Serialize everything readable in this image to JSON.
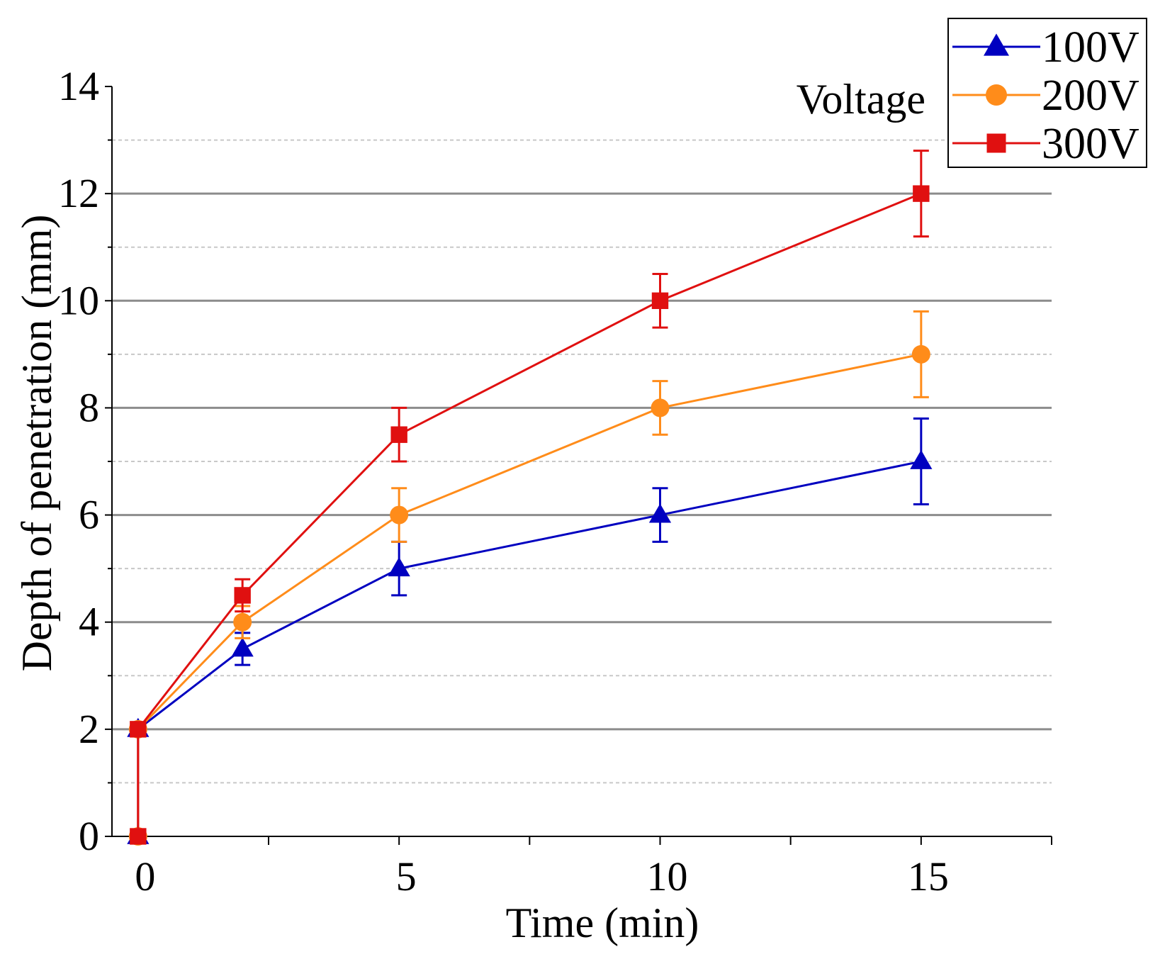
{
  "chart_data": {
    "type": "line",
    "title": "",
    "xlabel": "Time (min)",
    "ylabel": "Depth of penetration (mm)",
    "xlim": [
      -0.5,
      17.5
    ],
    "ylim": [
      0,
      14
    ],
    "x_ticks": [
      0,
      5,
      10,
      15
    ],
    "x_tick_labels": [
      "0",
      "5",
      "10",
      "15"
    ],
    "x_minor_ticks": [
      2.5,
      7.5,
      12.5,
      17.5
    ],
    "y_ticks": [
      0,
      2,
      4,
      6,
      8,
      10,
      12,
      14
    ],
    "y_tick_labels": [
      "0",
      "2",
      "4",
      "6",
      "8",
      "10",
      "12",
      "14"
    ],
    "y_minor_ticks": [
      1,
      3,
      5,
      7,
      9,
      11,
      13
    ],
    "grid": true,
    "legend_title": "Voltage",
    "legend_position": "top-right",
    "series": [
      {
        "name": "100V",
        "color": "#0000c0",
        "marker": "triangle",
        "x": [
          0,
          2,
          5,
          10,
          15
        ],
        "values": [
          2,
          3.5,
          5,
          6,
          7
        ],
        "errors": [
          0.1,
          0.3,
          0.5,
          0.5,
          0.8
        ],
        "origin_point": [
          0,
          0
        ]
      },
      {
        "name": "200V",
        "color": "#ff8c1a",
        "marker": "circle",
        "x": [
          0,
          2,
          5,
          10,
          15
        ],
        "values": [
          2,
          4,
          6,
          8,
          9
        ],
        "errors": [
          0.1,
          0.3,
          0.5,
          0.5,
          0.8
        ],
        "origin_point": [
          0,
          0
        ]
      },
      {
        "name": "300V",
        "color": "#e01010",
        "marker": "square",
        "x": [
          0,
          2,
          5,
          10,
          15
        ],
        "values": [
          2,
          4.5,
          7.5,
          10,
          12
        ],
        "errors": [
          0.1,
          0.3,
          0.5,
          0.5,
          0.8
        ],
        "origin_point": [
          0,
          0
        ]
      }
    ]
  }
}
